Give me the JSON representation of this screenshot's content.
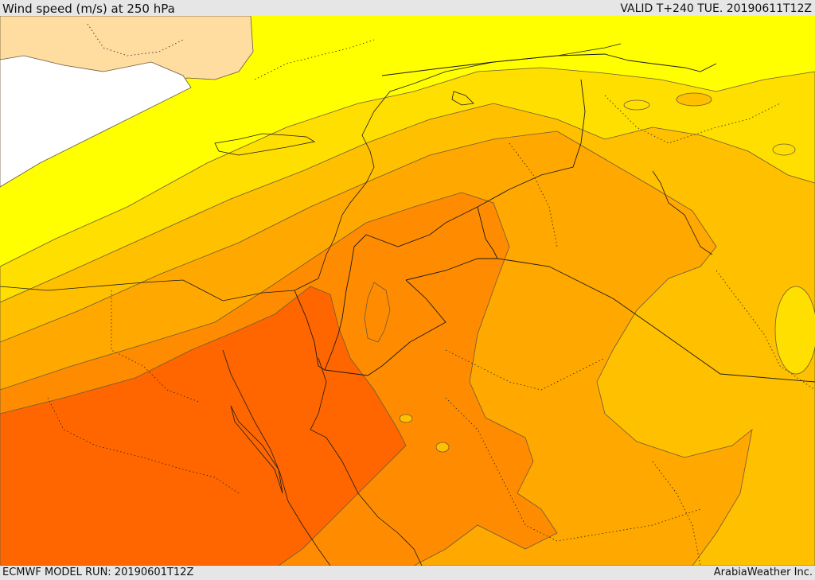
{
  "header": {
    "title": "Wind speed (m/s) at 250 hPa",
    "valid": "VALID T+240 TUE. 20190611T12Z"
  },
  "footer": {
    "model_run": "ECMWF MODEL RUN: 20190601T12Z",
    "credit": "ArabiaWeather Inc."
  },
  "map": {
    "variable": "Wind speed",
    "units": "m/s",
    "level": "250 hPa",
    "colors": {
      "lowest": "#ffffff",
      "band_1": "#ffdca0",
      "band_2": "#ffff00",
      "band_3": "#ffdf00",
      "band_4": "#ffc000",
      "band_5": "#ffa800",
      "band_6": "#ff8c00",
      "band_7": "#ff6600"
    }
  }
}
